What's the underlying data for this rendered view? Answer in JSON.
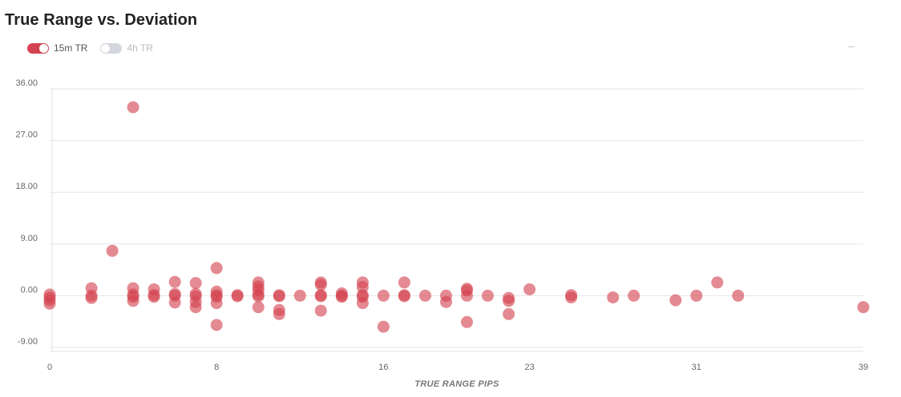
{
  "title": "True Range vs. Deviation",
  "legend": {
    "items": [
      {
        "label": "15m TR",
        "on": true
      },
      {
        "label": "4h TR",
        "on": false
      }
    ]
  },
  "colors": {
    "point": "#d4424f",
    "grid": "#e6e6e6",
    "toggle_on": "#d4424f",
    "toggle_off": "#d4d8de"
  },
  "chart_data": {
    "type": "scatter",
    "title": "True Range vs. Deviation",
    "xlabel": "TRUE RANGE PIPS",
    "ylabel": "",
    "xlim": [
      0,
      39
    ],
    "ylim": [
      -9,
      36
    ],
    "x_ticks": [
      "0",
      "8",
      "16",
      "23",
      "31",
      "39"
    ],
    "y_ticks": [
      "36.00",
      "27.00",
      "18.00",
      "9.00",
      "0.00",
      "-9.00"
    ],
    "grid": true,
    "legend_position": "top-left",
    "series": [
      {
        "name": "15m TR",
        "points": [
          [
            0,
            0.2
          ],
          [
            0,
            -0.3
          ],
          [
            0,
            -1.4
          ],
          [
            0,
            -0.8
          ],
          [
            2,
            1.3
          ],
          [
            2,
            0
          ],
          [
            2,
            -0.4
          ],
          [
            3,
            7.8
          ],
          [
            4,
            32.8
          ],
          [
            4,
            1.3
          ],
          [
            4,
            0.2
          ],
          [
            4,
            -0.2
          ],
          [
            4,
            -0.9
          ],
          [
            5,
            1.1
          ],
          [
            5,
            0.1
          ],
          [
            5,
            -0.2
          ],
          [
            6,
            2.4
          ],
          [
            6,
            0.3
          ],
          [
            6,
            0
          ],
          [
            6,
            -1.2
          ],
          [
            7,
            2.2
          ],
          [
            7,
            0.3
          ],
          [
            7,
            -0.1
          ],
          [
            7,
            -1.1
          ],
          [
            7,
            -2.0
          ],
          [
            8,
            4.8
          ],
          [
            8,
            0.7
          ],
          [
            8,
            0.1
          ],
          [
            8,
            -0.2
          ],
          [
            8,
            -1.3
          ],
          [
            8,
            -5.1
          ],
          [
            9,
            0.1
          ],
          [
            9,
            -0.1
          ],
          [
            10,
            2.3
          ],
          [
            10,
            1.6
          ],
          [
            10,
            1.0
          ],
          [
            10,
            0.2
          ],
          [
            10,
            -0.1
          ],
          [
            10,
            -2.0
          ],
          [
            11,
            0.1
          ],
          [
            11,
            -0.1
          ],
          [
            11,
            -2.5
          ],
          [
            11,
            -3.2
          ],
          [
            12,
            0
          ],
          [
            13,
            2.3
          ],
          [
            13,
            1.9
          ],
          [
            13,
            0.1
          ],
          [
            13,
            -0.1
          ],
          [
            13,
            -2.6
          ],
          [
            14,
            0.4
          ],
          [
            14,
            0
          ],
          [
            14,
            -0.2
          ],
          [
            15,
            2.3
          ],
          [
            15,
            1.5
          ],
          [
            15,
            0.1
          ],
          [
            15,
            -0.2
          ],
          [
            15,
            -1.3
          ],
          [
            16,
            0
          ],
          [
            16,
            -5.4
          ],
          [
            17,
            2.3
          ],
          [
            17,
            0.1
          ],
          [
            17,
            -0.1
          ],
          [
            18,
            0
          ],
          [
            19,
            0
          ],
          [
            19,
            -1.1
          ],
          [
            20,
            1.2
          ],
          [
            20,
            0.9
          ],
          [
            20,
            0
          ],
          [
            20,
            -4.6
          ],
          [
            21,
            0
          ],
          [
            22,
            -0.4
          ],
          [
            22,
            -0.9
          ],
          [
            22,
            -3.2
          ],
          [
            23,
            1.1
          ],
          [
            25,
            0.1
          ],
          [
            25,
            -0.3
          ],
          [
            27,
            -0.3
          ],
          [
            28,
            0
          ],
          [
            30,
            -0.8
          ],
          [
            31,
            0
          ],
          [
            32,
            2.3
          ],
          [
            33,
            0
          ],
          [
            39,
            -2.0
          ]
        ]
      }
    ]
  }
}
